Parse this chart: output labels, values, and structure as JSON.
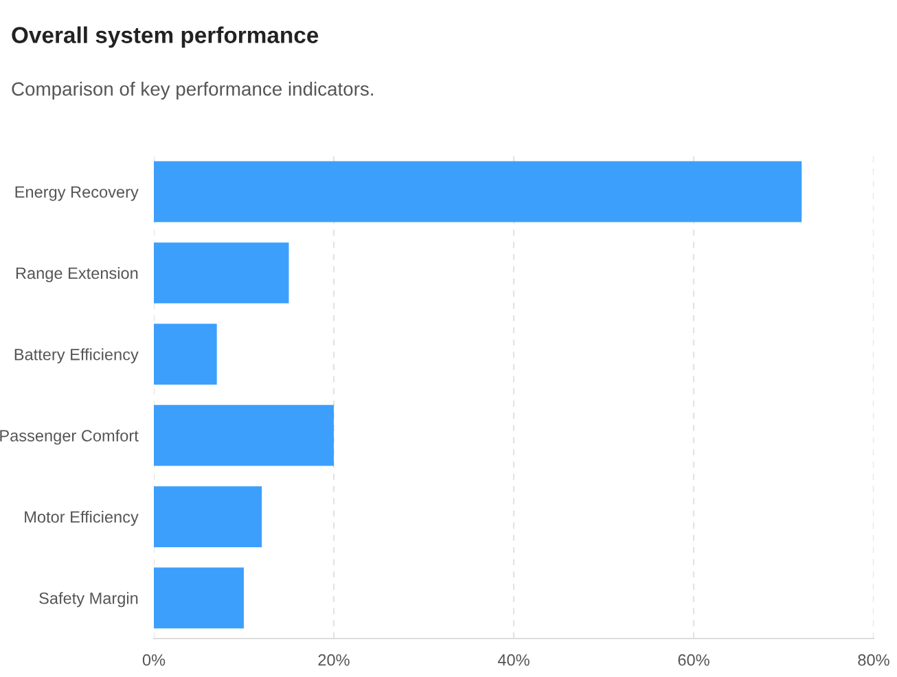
{
  "chart_data": {
    "type": "bar",
    "orientation": "horizontal",
    "title": "Overall system performance",
    "subtitle": "Comparison of key performance indicators.",
    "categories": [
      "Energy Recovery",
      "Range Extension",
      "Battery Efficiency",
      "Passenger Comfort",
      "Motor Efficiency",
      "Safety Margin"
    ],
    "values": [
      72,
      15,
      7,
      20,
      12,
      10
    ],
    "color": "#3d9ffc",
    "xlim": [
      0,
      80
    ],
    "xticks": [
      {
        "value": 0,
        "label": "0%"
      },
      {
        "value": 20,
        "label": "20%"
      },
      {
        "value": 40,
        "label": "40%"
      },
      {
        "value": 60,
        "label": "60%"
      },
      {
        "value": 80,
        "label": "80%"
      }
    ],
    "grid": "x",
    "legend": false
  }
}
